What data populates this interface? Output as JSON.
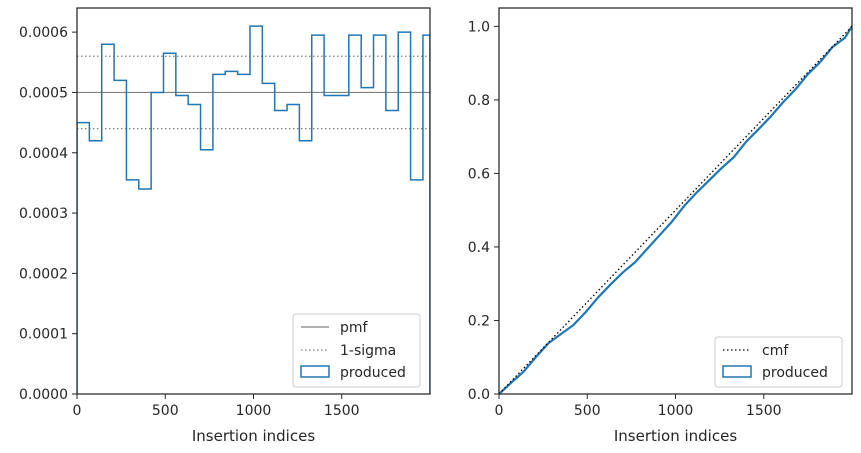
{
  "chart_data": [
    {
      "type": "step",
      "xlabel": "Insertion indices",
      "ylabel": "",
      "xlim": [
        0,
        2000
      ],
      "ylim": [
        0,
        0.00064
      ],
      "xticks": [
        0,
        500,
        1000,
        1500
      ],
      "xtick_labels": [
        "0",
        "500",
        "1000",
        "1500"
      ],
      "yticks": [
        0,
        0.0001,
        0.0002,
        0.0003,
        0.0004,
        0.0005,
        0.0006
      ],
      "ytick_labels": [
        "0.0000",
        "0.0001",
        "0.0002",
        "0.0003",
        "0.0004",
        "0.0005",
        "0.0006"
      ],
      "grid": false,
      "legend_position": "lower-right",
      "colors": {
        "produced": "#1f77b4",
        "pmf": "#808080",
        "sigma": "#808080"
      },
      "bin_edges": [
        0,
        70,
        140,
        210,
        280,
        350,
        420,
        490,
        560,
        630,
        700,
        770,
        840,
        910,
        980,
        1050,
        1120,
        1190,
        1260,
        1330,
        1400,
        1470,
        1540,
        1610,
        1680,
        1750,
        1820,
        1890,
        1960,
        2000
      ],
      "produced": [
        0.00045,
        0.00042,
        0.00058,
        0.00052,
        0.000355,
        0.00034,
        0.0005,
        0.000565,
        0.000495,
        0.00048,
        0.000405,
        0.00053,
        0.000535,
        0.00053,
        0.00061,
        0.000515,
        0.00047,
        0.00048,
        0.00042,
        0.000595,
        0.000495,
        0.000495,
        0.000595,
        0.000508,
        0.000595,
        0.00047,
        0.0006,
        0.000355,
        0.000595
      ],
      "pmf": 0.0005,
      "sigma_band": [
        0.00044,
        0.00056
      ],
      "legend": [
        "pmf",
        "1-sigma",
        "produced"
      ]
    },
    {
      "type": "line",
      "xlabel": "Insertion indices",
      "ylabel": "",
      "xlim": [
        0,
        2000
      ],
      "ylim": [
        0,
        1.05
      ],
      "xticks": [
        0,
        500,
        1000,
        1500
      ],
      "xtick_labels": [
        "0",
        "500",
        "1000",
        "1500"
      ],
      "yticks": [
        0,
        0.2,
        0.4,
        0.6,
        0.8,
        1.0
      ],
      "ytick_labels": [
        "0.0",
        "0.2",
        "0.4",
        "0.6",
        "0.8",
        "1.0"
      ],
      "grid": false,
      "legend_position": "lower-right",
      "colors": {
        "produced": "#1f77b4",
        "cmf": "#000000"
      },
      "cmf": {
        "x": [
          0,
          2000
        ],
        "y": [
          0,
          1
        ]
      },
      "produced": {
        "x": [
          0,
          70,
          140,
          210,
          280,
          350,
          420,
          490,
          560,
          630,
          700,
          770,
          840,
          910,
          980,
          1050,
          1120,
          1190,
          1260,
          1330,
          1400,
          1470,
          1540,
          1610,
          1680,
          1750,
          1820,
          1890,
          1960,
          2000
        ],
        "y": [
          0,
          0.031,
          0.061,
          0.101,
          0.138,
          0.163,
          0.187,
          0.222,
          0.262,
          0.297,
          0.33,
          0.358,
          0.395,
          0.432,
          0.469,
          0.512,
          0.548,
          0.581,
          0.614,
          0.644,
          0.686,
          0.72,
          0.755,
          0.794,
          0.829,
          0.87,
          0.903,
          0.944,
          0.969,
          1.0
        ]
      },
      "legend": [
        "cmf",
        "produced"
      ]
    }
  ]
}
